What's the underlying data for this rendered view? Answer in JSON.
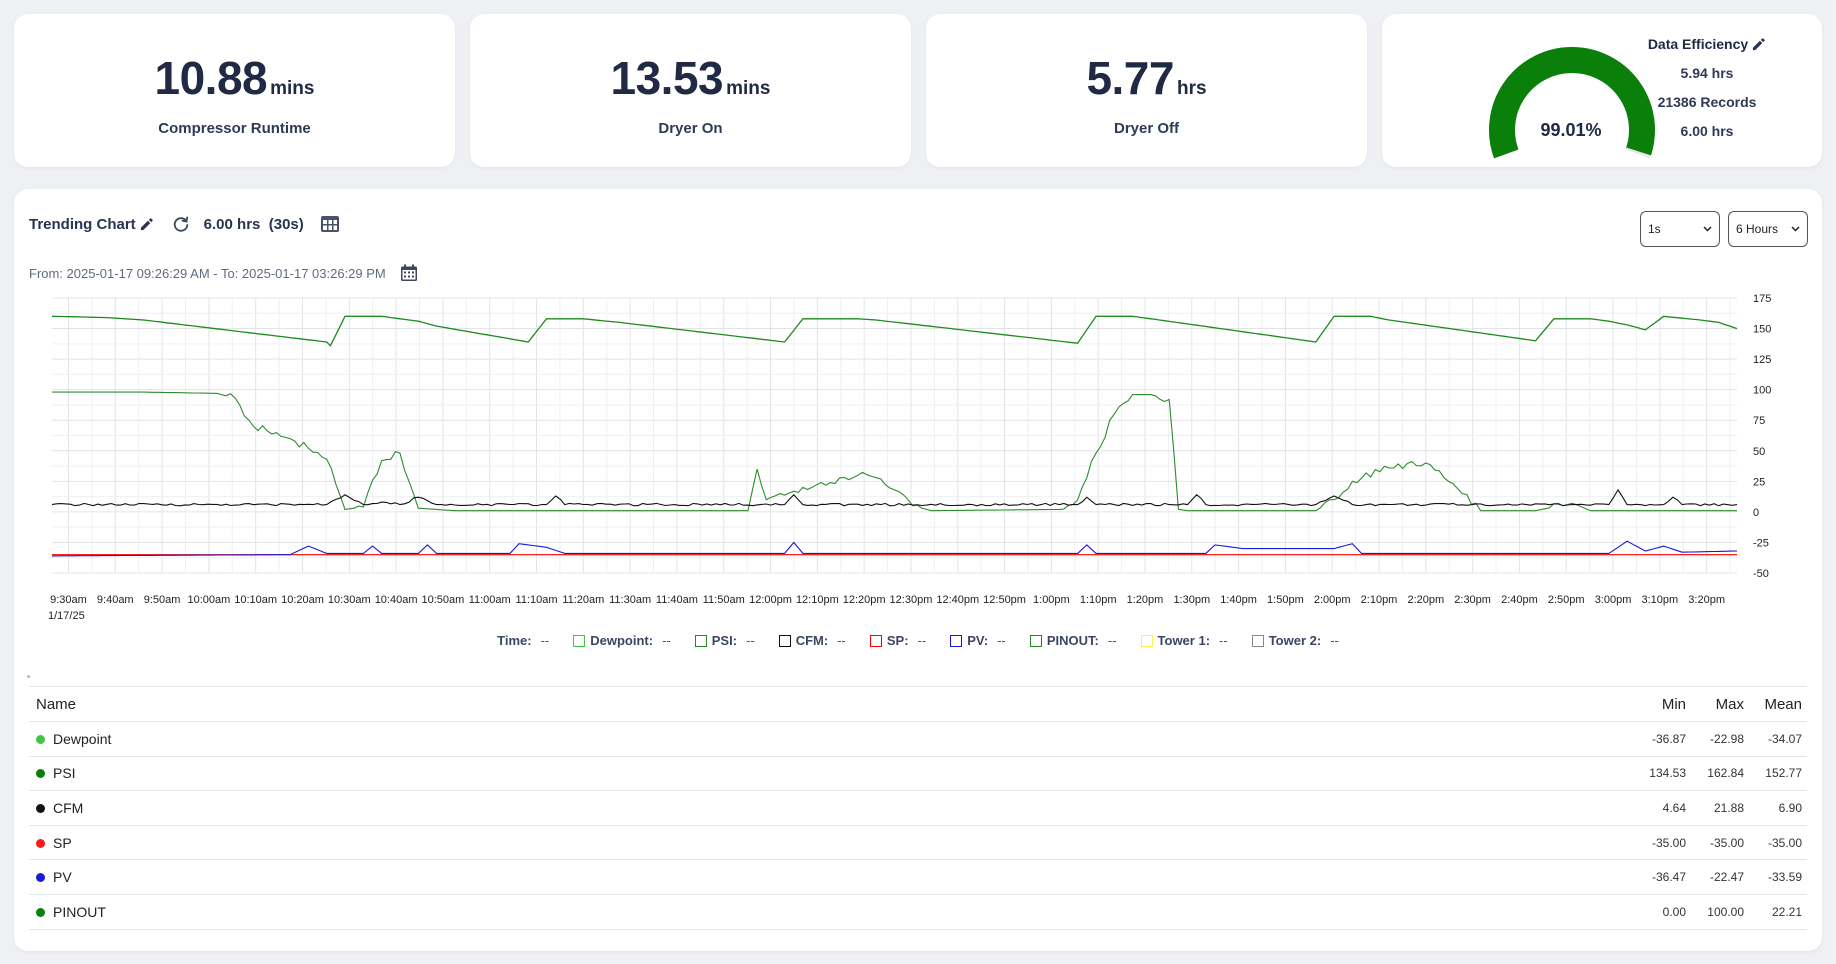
{
  "stats": [
    {
      "value": "10.88",
      "unit": "mins",
      "label": "Compressor Runtime"
    },
    {
      "value": "13.53",
      "unit": "mins",
      "label": "Dryer On"
    },
    {
      "value": "5.77",
      "unit": "hrs",
      "label": "Dryer Off"
    }
  ],
  "gauge": {
    "value": 99.01,
    "value_text": "99.01%",
    "color": "#0a7f0a",
    "track_color": "#e5e7ea"
  },
  "efficiency": {
    "title": "Data Efficiency",
    "hours": "5.94 hrs",
    "records": "21386 Records",
    "total": "6.00 hrs"
  },
  "toolbar": {
    "title": "Trending Chart",
    "range": "6.00 hrs",
    "interval": "(30s)",
    "date_range": "From: 2025-01-17 09:26:29 AM - To: 2025-01-17 03:26:29 PM",
    "interval_select": "1s",
    "range_select": "6 Hours"
  },
  "chart_data": {
    "type": "line",
    "x_range": [
      "9:26:29am",
      "3:26:29pm"
    ],
    "x_ticks": [
      "9:30am",
      "9:40am",
      "9:50am",
      "10:00am",
      "10:10am",
      "10:20am",
      "10:30am",
      "10:40am",
      "10:50am",
      "11:00am",
      "11:10am",
      "11:20am",
      "11:30am",
      "11:40am",
      "11:50am",
      "12:00pm",
      "12:10pm",
      "12:20pm",
      "12:30pm",
      "12:40pm",
      "12:50pm",
      "1:00pm",
      "1:10pm",
      "1:20pm",
      "1:30pm",
      "1:40pm",
      "1:50pm",
      "2:00pm",
      "2:10pm",
      "2:20pm",
      "2:30pm",
      "2:40pm",
      "2:50pm",
      "3:00pm",
      "3:10pm",
      "3:20pm"
    ],
    "x_date_label": "1/17/25",
    "y_ticks": [
      175,
      150,
      125,
      100,
      75,
      50,
      25,
      0,
      -25,
      -50
    ],
    "ylim": [
      -50,
      175
    ],
    "grid": true,
    "series": [
      {
        "name": "PSI",
        "color": "#1f8a1f",
        "points": [
          [
            0,
            160
          ],
          [
            3,
            159
          ],
          [
            5,
            157
          ],
          [
            15,
            139
          ],
          [
            15.2,
            136
          ],
          [
            16,
            160
          ],
          [
            18,
            160
          ],
          [
            20,
            156
          ],
          [
            21,
            152
          ],
          [
            26,
            139
          ],
          [
            27,
            158
          ],
          [
            29,
            158
          ],
          [
            31,
            155
          ],
          [
            40,
            139
          ],
          [
            41,
            158
          ],
          [
            44,
            158
          ],
          [
            45,
            157
          ],
          [
            56,
            138
          ],
          [
            57,
            160
          ],
          [
            59,
            160
          ],
          [
            60,
            158
          ],
          [
            69,
            139
          ],
          [
            70,
            160
          ],
          [
            72,
            160
          ],
          [
            73,
            157
          ],
          [
            81,
            140
          ],
          [
            82,
            158
          ],
          [
            84,
            158
          ],
          [
            85,
            156
          ],
          [
            86,
            153
          ],
          [
            87,
            149
          ],
          [
            88,
            160
          ],
          [
            90,
            157
          ],
          [
            91,
            155
          ],
          [
            92,
            150
          ]
        ]
      },
      {
        "name": "PINOUT",
        "color": "#2e8b2e",
        "points": [
          [
            0,
            98
          ],
          [
            5,
            98
          ],
          [
            9,
            97
          ],
          [
            10,
            93
          ],
          [
            11,
            70
          ],
          [
            13,
            60
          ],
          [
            14,
            52
          ],
          [
            15,
            43
          ],
          [
            16,
            2
          ],
          [
            17,
            4
          ],
          [
            18,
            42
          ],
          [
            19,
            48
          ],
          [
            20,
            3
          ],
          [
            22,
            1
          ],
          [
            38,
            1
          ],
          [
            38.5,
            35
          ],
          [
            39,
            10
          ],
          [
            41,
            20
          ],
          [
            44,
            30
          ],
          [
            45,
            28
          ],
          [
            46,
            18
          ],
          [
            47,
            5
          ],
          [
            48,
            1
          ],
          [
            55,
            2
          ],
          [
            56,
            10
          ],
          [
            57,
            48
          ],
          [
            58,
            80
          ],
          [
            59,
            96
          ],
          [
            60,
            96
          ],
          [
            61,
            92
          ],
          [
            61.5,
            2
          ],
          [
            62,
            1
          ],
          [
            69,
            1
          ],
          [
            70,
            10
          ],
          [
            71,
            25
          ],
          [
            73,
            36
          ],
          [
            75,
            40
          ],
          [
            76,
            28
          ],
          [
            77,
            15
          ],
          [
            78,
            1
          ],
          [
            81,
            1
          ],
          [
            83,
            7
          ],
          [
            84,
            1
          ],
          [
            92,
            1
          ]
        ]
      },
      {
        "name": "CFM",
        "color": "#111111",
        "points": [
          [
            0,
            6
          ],
          [
            15,
            6
          ],
          [
            16,
            14
          ],
          [
            17,
            6
          ],
          [
            18,
            8
          ],
          [
            19,
            6
          ],
          [
            20,
            12
          ],
          [
            21,
            6
          ],
          [
            27,
            6
          ],
          [
            27.5,
            13
          ],
          [
            28,
            6
          ],
          [
            40,
            6
          ],
          [
            40.5,
            14
          ],
          [
            41,
            6
          ],
          [
            56,
            6
          ],
          [
            56.5,
            12
          ],
          [
            57,
            6
          ],
          [
            62,
            6
          ],
          [
            62.5,
            14
          ],
          [
            63,
            6
          ],
          [
            69,
            6
          ],
          [
            70,
            13
          ],
          [
            71,
            6
          ],
          [
            85,
            6
          ],
          [
            85.5,
            18
          ],
          [
            86,
            6
          ],
          [
            88,
            6
          ],
          [
            88.5,
            12
          ],
          [
            89,
            6
          ],
          [
            92,
            6
          ]
        ]
      },
      {
        "name": "SP",
        "color": "#ff0000",
        "points": [
          [
            0,
            -35
          ],
          [
            92,
            -35
          ]
        ]
      },
      {
        "name": "PV",
        "color": "#1a1ad9",
        "points": [
          [
            0,
            -36
          ],
          [
            13,
            -35
          ],
          [
            14,
            -28
          ],
          [
            15,
            -34
          ],
          [
            17,
            -34
          ],
          [
            17.5,
            -28
          ],
          [
            18,
            -34
          ],
          [
            20,
            -34
          ],
          [
            20.5,
            -27
          ],
          [
            21,
            -34
          ],
          [
            25,
            -34
          ],
          [
            25.5,
            -26
          ],
          [
            27,
            -29
          ],
          [
            28,
            -34
          ],
          [
            40,
            -34
          ],
          [
            40.5,
            -25
          ],
          [
            41,
            -34
          ],
          [
            56,
            -34
          ],
          [
            56.5,
            -27
          ],
          [
            57,
            -34
          ],
          [
            63,
            -34
          ],
          [
            63.5,
            -27
          ],
          [
            65,
            -30
          ],
          [
            70,
            -30
          ],
          [
            71,
            -26
          ],
          [
            71.5,
            -34
          ],
          [
            85,
            -34
          ],
          [
            86,
            -24
          ],
          [
            87,
            -32
          ],
          [
            88,
            -28
          ],
          [
            89,
            -33
          ],
          [
            92,
            -32
          ]
        ]
      },
      {
        "name": "Dewpoint",
        "color": "#43c443",
        "points": []
      }
    ]
  },
  "legend": [
    {
      "label": "Time:",
      "value": "--",
      "color": ""
    },
    {
      "label": "Dewpoint:",
      "value": "--",
      "color": "#43c443"
    },
    {
      "label": "PSI:",
      "value": "--",
      "color": "#1f8a1f"
    },
    {
      "label": "CFM:",
      "value": "--",
      "color": "#111111"
    },
    {
      "label": "SP:",
      "value": "--",
      "color": "#ff0000"
    },
    {
      "label": "PV:",
      "value": "--",
      "color": "#1a1ad9"
    },
    {
      "label": "PINOUT:",
      "value": "--",
      "color": "#1f8a1f"
    },
    {
      "label": "Tower 1:",
      "value": "--",
      "color": "#f5f55a"
    },
    {
      "label": "Tower 2:",
      "value": "--",
      "color": "#888888"
    }
  ],
  "table": {
    "headers": {
      "name": "Name",
      "min": "Min",
      "max": "Max",
      "mean": "Mean"
    },
    "rows": [
      {
        "name": "Dewpoint",
        "color": "#43c443",
        "min": "-36.87",
        "max": "-22.98",
        "mean": "-34.07"
      },
      {
        "name": "PSI",
        "color": "#0a7f0a",
        "min": "134.53",
        "max": "162.84",
        "mean": "152.77"
      },
      {
        "name": "CFM",
        "color": "#111111",
        "min": "4.64",
        "max": "21.88",
        "mean": "6.90"
      },
      {
        "name": "SP",
        "color": "#ff1a1a",
        "min": "-35.00",
        "max": "-35.00",
        "mean": "-35.00"
      },
      {
        "name": "PV",
        "color": "#1a1ad9",
        "min": "-36.47",
        "max": "-22.47",
        "mean": "-33.59"
      },
      {
        "name": "PINOUT",
        "color": "#0a7f0a",
        "min": "0.00",
        "max": "100.00",
        "mean": "22.21"
      }
    ]
  }
}
